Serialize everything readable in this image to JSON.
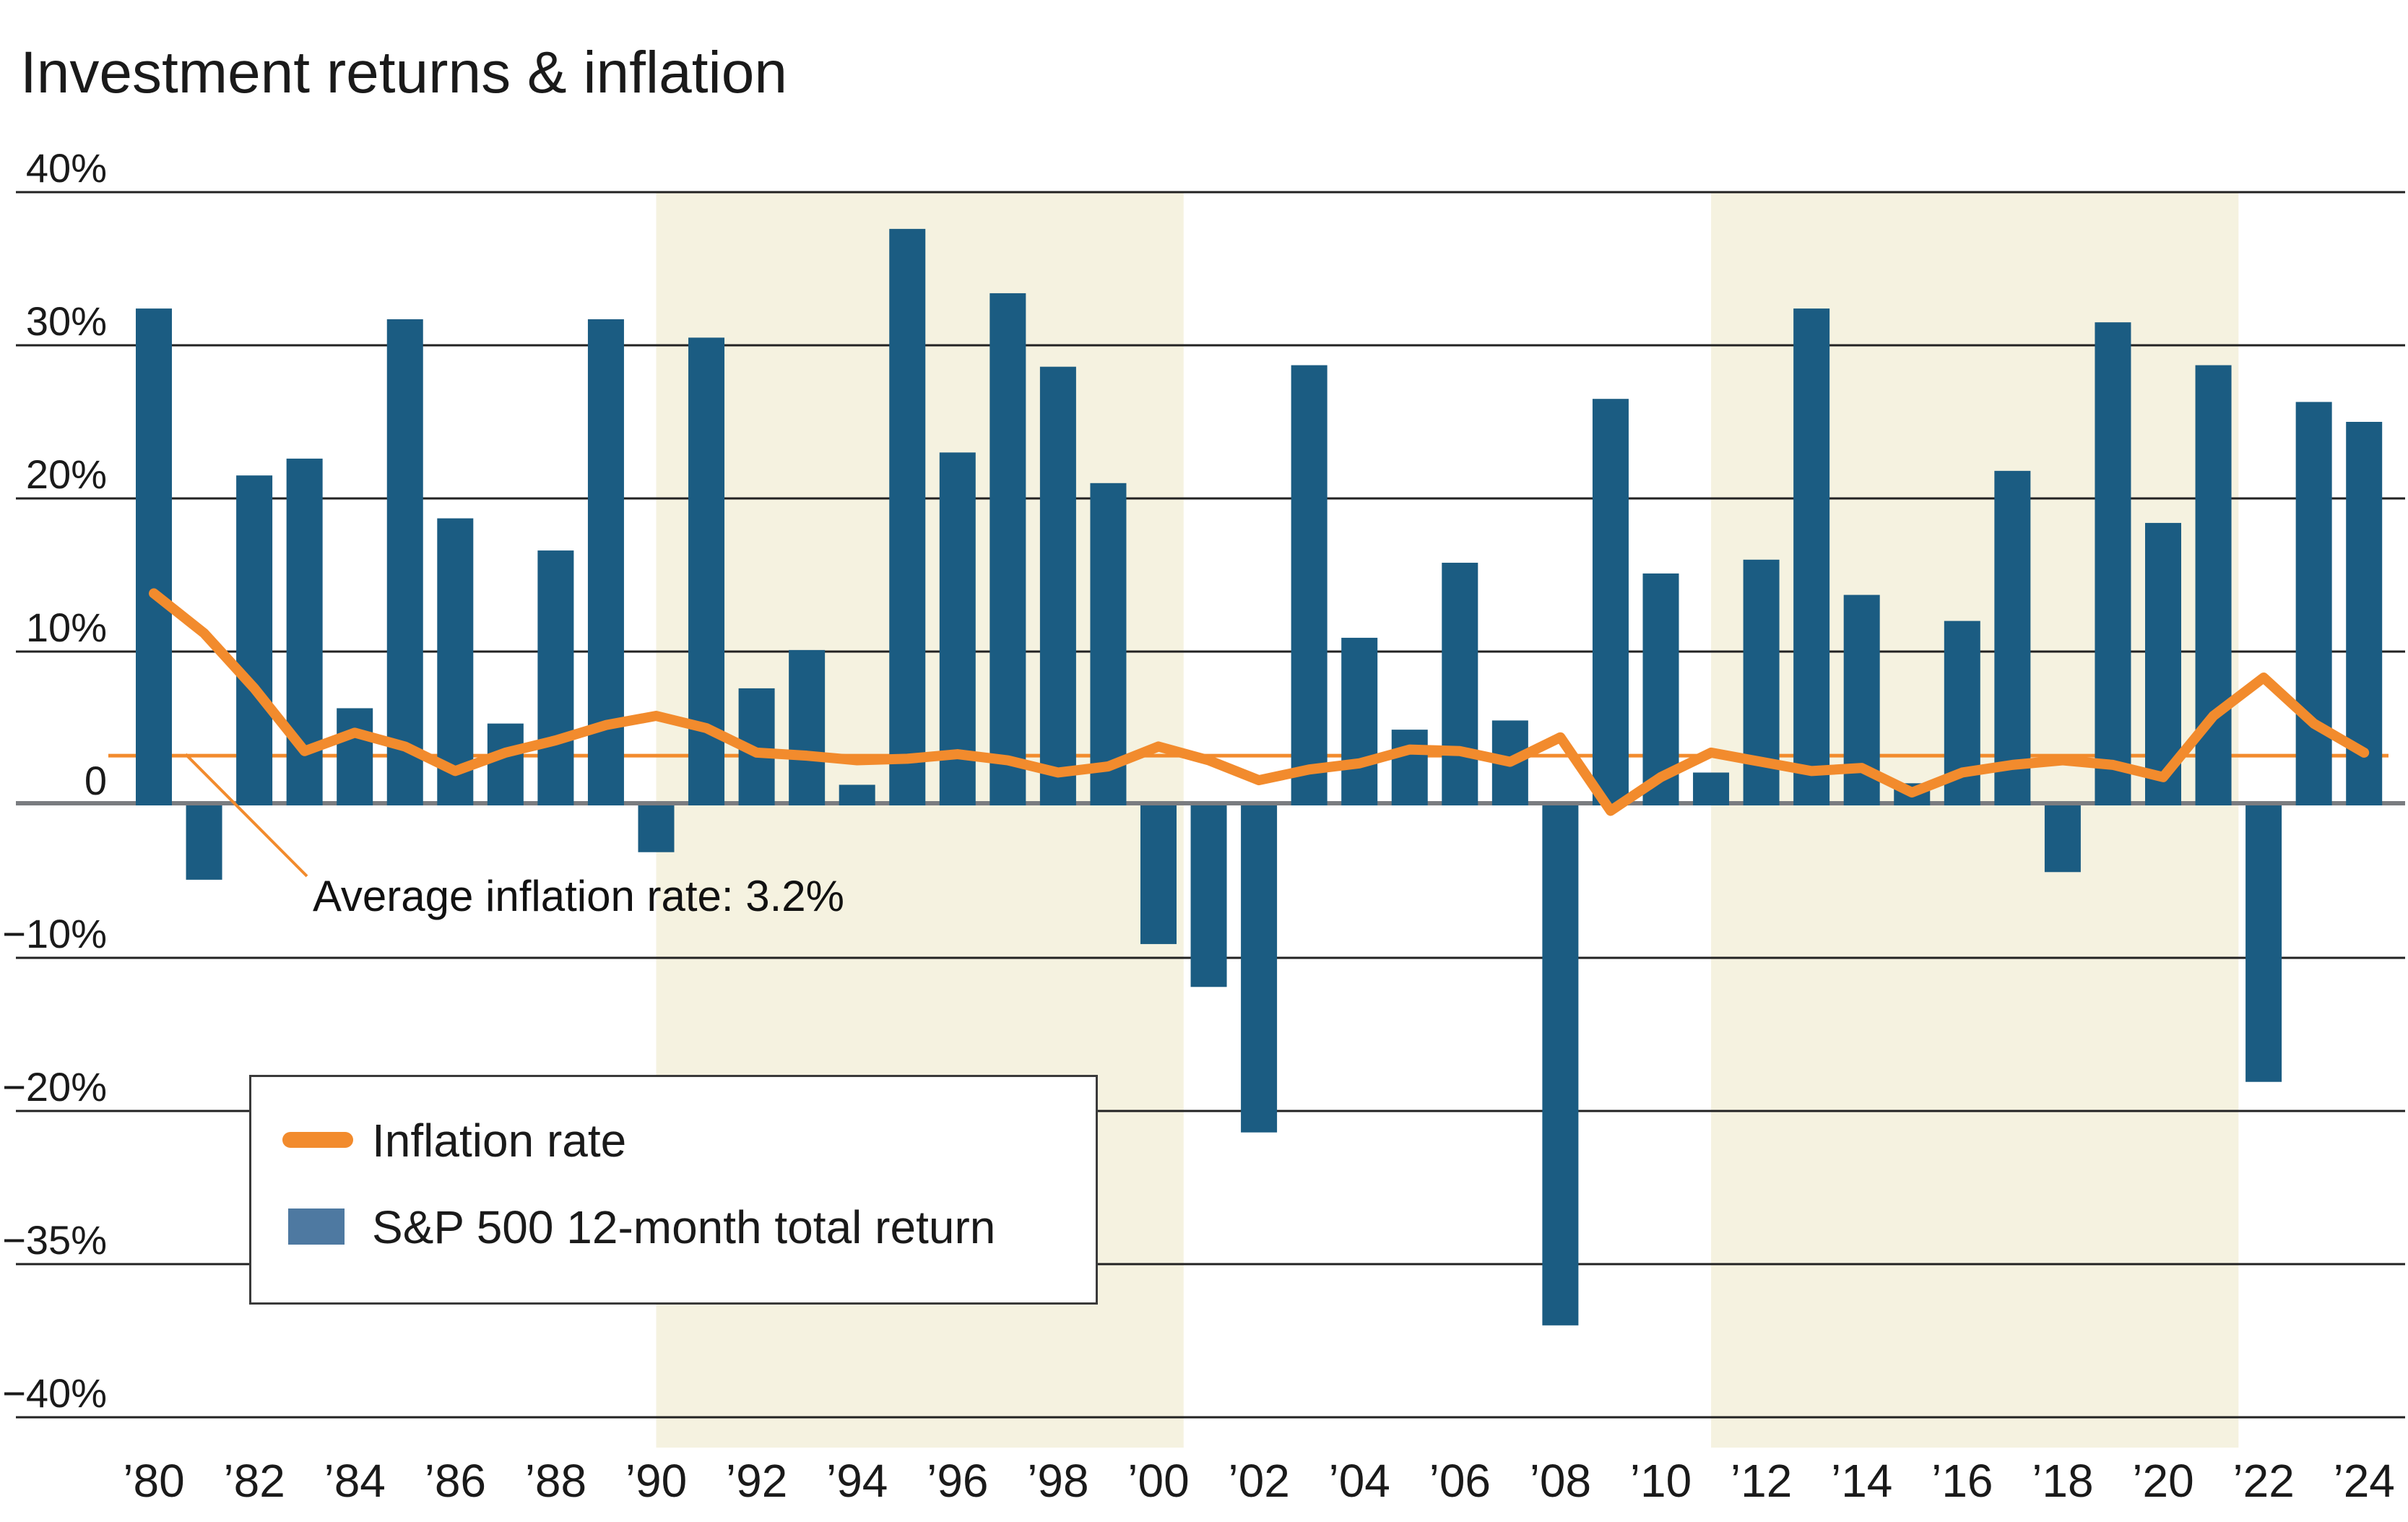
{
  "title": "Investment returns & inflation",
  "legend": {
    "inflation_label": "Inflation rate",
    "sp500_label": "S&P 500 12-month total return"
  },
  "annotation": {
    "text": "Average inflation rate: 3.2%",
    "average_inflation_value": 3.2
  },
  "axis": {
    "y_tick_labels": [
      "40%",
      "30%",
      "20%",
      "10%",
      "0",
      "−10%",
      "−20%",
      "−35%",
      "−40%"
    ],
    "y_tick_values": [
      40,
      30,
      20,
      10,
      0,
      -10,
      -20,
      -35,
      -40
    ],
    "y_axis_note": "scale compressed below −20%",
    "x_tick_labels": [
      "’80",
      "’82",
      "’84",
      "’86",
      "’88",
      "’90",
      "’92",
      "’94",
      "’96",
      "’98",
      "’00",
      "’02",
      "’04",
      "’06",
      "’08",
      "’10",
      "’12",
      "’14",
      "’16",
      "’18",
      "’20",
      "’22",
      "’24"
    ]
  },
  "colors": {
    "bar": "#1B5C82",
    "line_orange": "#F28B2D",
    "legend_bar_swatch": "#4E79A1",
    "highlight_band": "#F5F2E0",
    "zero_line": "#7A7C80",
    "gridline": "#222222",
    "text": "#1a1a1a"
  },
  "chart_data": {
    "type": "combo",
    "title": "Investment returns & inflation",
    "x": [
      1980,
      1981,
      1982,
      1983,
      1984,
      1985,
      1986,
      1987,
      1988,
      1989,
      1990,
      1991,
      1992,
      1993,
      1994,
      1995,
      1996,
      1997,
      1998,
      1999,
      2000,
      2001,
      2002,
      2003,
      2004,
      2005,
      2006,
      2007,
      2008,
      2009,
      2010,
      2011,
      2012,
      2013,
      2014,
      2015,
      2016,
      2017,
      2018,
      2019,
      2020,
      2021,
      2022,
      2023,
      2024
    ],
    "series": [
      {
        "name": "S&P 500 12-month total return",
        "type": "bar",
        "color": "#1B5C82",
        "values": [
          32.4,
          -4.9,
          21.5,
          22.6,
          6.3,
          31.7,
          18.7,
          5.3,
          16.6,
          31.7,
          -3.1,
          30.5,
          7.6,
          10.1,
          1.3,
          37.6,
          23.0,
          33.4,
          28.6,
          21.0,
          -9.1,
          -11.9,
          -22.1,
          28.7,
          10.9,
          4.9,
          15.8,
          5.5,
          -37.0,
          26.5,
          15.1,
          2.1,
          16.0,
          32.4,
          13.7,
          1.4,
          12.0,
          21.8,
          -4.4,
          31.5,
          18.4,
          28.7,
          -18.1,
          26.3,
          25.0
        ]
      },
      {
        "name": "Inflation rate",
        "type": "line",
        "color": "#F28B2D",
        "values": [
          13.8,
          11.2,
          7.6,
          3.5,
          4.7,
          3.8,
          2.2,
          3.4,
          4.2,
          5.2,
          5.8,
          5.0,
          3.4,
          3.2,
          2.9,
          3.0,
          3.3,
          2.9,
          2.1,
          2.5,
          3.8,
          2.9,
          1.6,
          2.3,
          2.7,
          3.6,
          3.5,
          2.8,
          4.4,
          -0.4,
          1.8,
          3.4,
          2.8,
          2.2,
          2.4,
          0.8,
          2.1,
          2.6,
          2.9,
          2.6,
          1.8,
          5.8,
          8.3,
          5.3,
          3.4
        ]
      }
    ],
    "average_inflation": 3.2,
    "highlight_bands_years": [
      [
        1990,
        2000.5
      ],
      [
        2011,
        2021.5
      ]
    ],
    "ylim_display": [
      -40,
      40
    ],
    "grid": "on",
    "legend_position": "bottom-left-box"
  }
}
